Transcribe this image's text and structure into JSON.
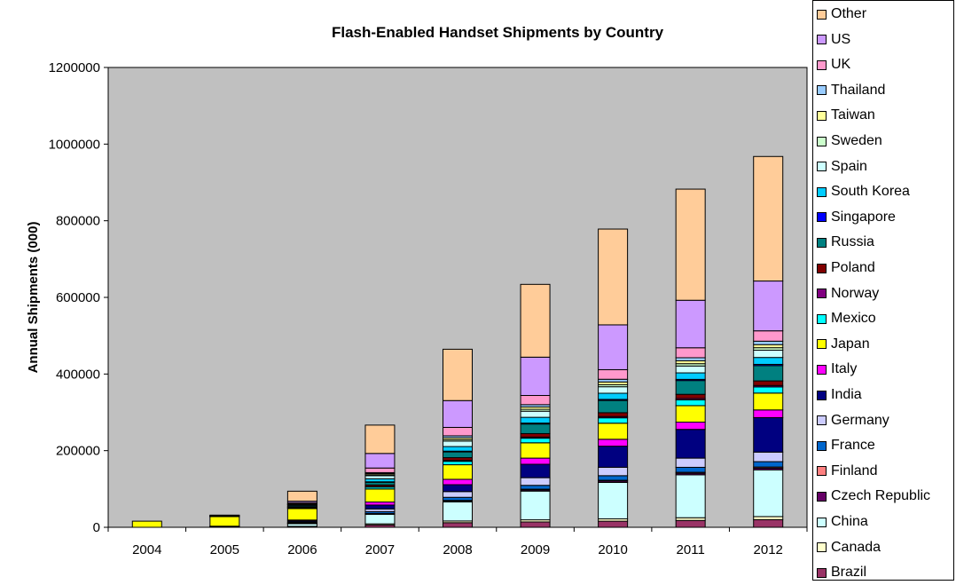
{
  "chart_data": {
    "type": "bar",
    "stacked": true,
    "title": "Flash-Enabled Handset Shipments by Country",
    "xlabel": "",
    "ylabel": "Annual Shipments (000)",
    "ylim": [
      0,
      1200000
    ],
    "yticks": [
      "0",
      "200000",
      "400000",
      "600000",
      "800000",
      "1000000",
      "1200000"
    ],
    "grid": false,
    "plot_background": "#c0c0c0",
    "legend_position": "right",
    "categories": [
      "2004",
      "2005",
      "2006",
      "2007",
      "2008",
      "2009",
      "2010",
      "2011",
      "2012"
    ],
    "series": [
      {
        "name": "Brazil",
        "color": "#993366",
        "values": [
          0,
          0,
          1500,
          6000,
          12000,
          14000,
          16000,
          18000,
          20000
        ]
      },
      {
        "name": "Canada",
        "color": "#ffffcc",
        "values": [
          0,
          0,
          1000,
          3000,
          4500,
          5500,
          6000,
          7000,
          8000
        ]
      },
      {
        "name": "China",
        "color": "#ccffff",
        "values": [
          0,
          1500,
          7000,
          25000,
          50000,
          75000,
          95000,
          112000,
          122000
        ]
      },
      {
        "name": "Czech Republic",
        "color": "#660066",
        "values": [
          0,
          0,
          300,
          1200,
          2200,
          3000,
          3500,
          4000,
          4500
        ]
      },
      {
        "name": "Finland",
        "color": "#ff8080",
        "values": [
          0,
          0,
          200,
          800,
          1500,
          2000,
          2200,
          2500,
          2800
        ]
      },
      {
        "name": "France",
        "color": "#0066cc",
        "values": [
          0,
          300,
          1500,
          5000,
          8000,
          10000,
          12000,
          13000,
          14000
        ]
      },
      {
        "name": "Germany",
        "color": "#ccccff",
        "values": [
          0,
          400,
          2000,
          7000,
          15000,
          20000,
          22000,
          24000,
          25000
        ]
      },
      {
        "name": "India",
        "color": "#000080",
        "values": [
          0,
          300,
          3000,
          10000,
          18000,
          35000,
          55000,
          75000,
          90000
        ]
      },
      {
        "name": "Italy",
        "color": "#ff00ff",
        "values": [
          0,
          400,
          2500,
          8000,
          14000,
          16000,
          18000,
          19000,
          20000
        ]
      },
      {
        "name": "Japan",
        "color": "#ffff00",
        "values": [
          16000,
          25000,
          30000,
          34000,
          38000,
          40000,
          42000,
          43000,
          44000
        ]
      },
      {
        "name": "Mexico",
        "color": "#00ffff",
        "values": [
          0,
          200,
          1500,
          5000,
          9000,
          12000,
          14000,
          15000,
          16000
        ]
      },
      {
        "name": "Norway",
        "color": "#800080",
        "values": [
          0,
          100,
          400,
          1500,
          2500,
          3000,
          3300,
          3500,
          3700
        ]
      },
      {
        "name": "Poland",
        "color": "#800000",
        "values": [
          0,
          200,
          1000,
          4000,
          7000,
          9000,
          10000,
          11000,
          12000
        ]
      },
      {
        "name": "Russia",
        "color": "#008080",
        "values": [
          0,
          300,
          2000,
          7000,
          15000,
          25000,
          32000,
          36000,
          40000
        ]
      },
      {
        "name": "Singapore",
        "color": "#0000ff",
        "values": [
          0,
          100,
          300,
          1200,
          2000,
          2500,
          2800,
          3000,
          3200
        ]
      },
      {
        "name": "South Korea",
        "color": "#00ccff",
        "values": [
          0,
          400,
          3000,
          8000,
          12000,
          15000,
          16000,
          17000,
          18000
        ]
      },
      {
        "name": "Spain",
        "color": "#ccffff",
        "values": [
          0,
          300,
          2000,
          8000,
          14000,
          16000,
          17000,
          18000,
          19000
        ]
      },
      {
        "name": "Sweden",
        "color": "#ccffcc",
        "values": [
          0,
          100,
          500,
          2500,
          4000,
          5000,
          5500,
          6000,
          6500
        ]
      },
      {
        "name": "Taiwan",
        "color": "#ffff99",
        "values": [
          0,
          200,
          800,
          3000,
          5000,
          6000,
          7000,
          7500,
          8000
        ]
      },
      {
        "name": "Thailand",
        "color": "#99ccff",
        "values": [
          0,
          100,
          700,
          2500,
          5000,
          6000,
          7000,
          8000,
          9000
        ]
      },
      {
        "name": "UK",
        "color": "#ff99cc",
        "values": [
          0,
          400,
          3000,
          12000,
          22000,
          24000,
          25000,
          26000,
          27000
        ]
      },
      {
        "name": "US",
        "color": "#cc99ff",
        "values": [
          0,
          500,
          4000,
          38000,
          70000,
          100000,
          117000,
          124000,
          130000
        ]
      },
      {
        "name": "Other",
        "color": "#ffcc99",
        "values": [
          0,
          1000,
          26000,
          74000,
          134000,
          190000,
          250000,
          290000,
          325000
        ]
      }
    ]
  }
}
